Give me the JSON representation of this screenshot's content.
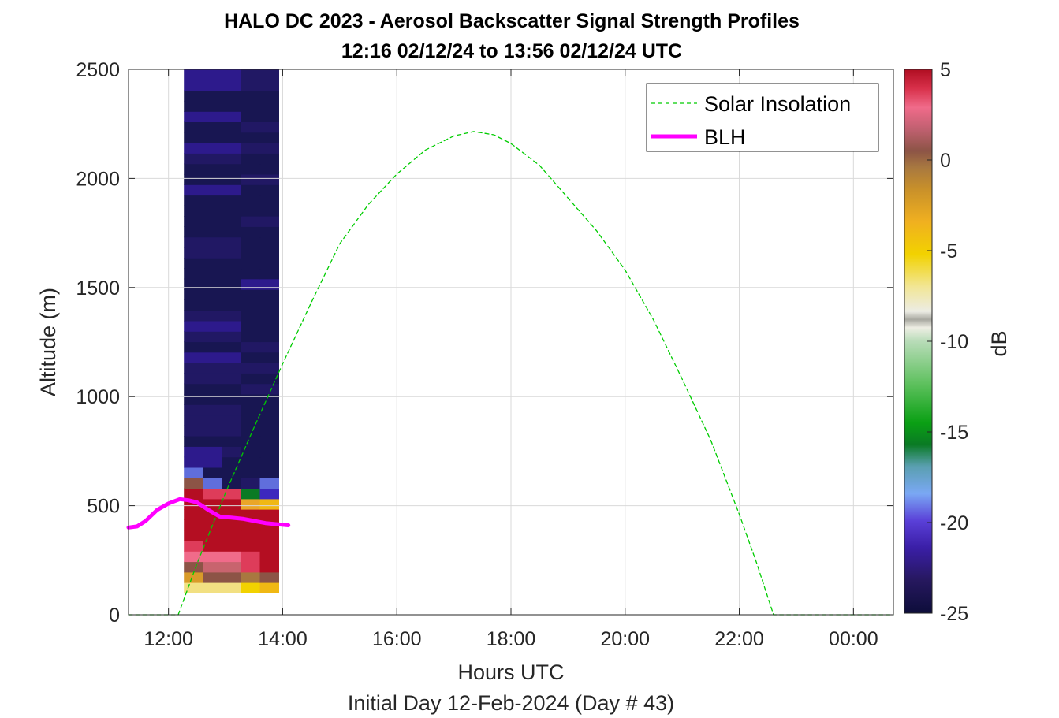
{
  "chart_data": {
    "type": "heatmap",
    "title": "HALO DC 2023 - Aerosol Backscatter Signal Strength Profiles",
    "subtitle": "12:16 02/12/24 to 13:56 02/12/24  UTC",
    "xlabel": "Hours UTC",
    "xlabel2": "Initial Day 12-Feb-2024 (Day # 43)",
    "ylabel": "Altitude (m)",
    "xlim": [
      11.3,
      24.7
    ],
    "ylim": [
      0,
      2500
    ],
    "x_ticks": [
      12,
      14,
      16,
      18,
      20,
      22,
      24
    ],
    "x_tick_labels": [
      "12:00",
      "14:00",
      "16:00",
      "18:00",
      "20:00",
      "22:00",
      "00:00"
    ],
    "y_ticks": [
      0,
      500,
      1000,
      1500,
      2000,
      2500
    ],
    "y_tick_labels": [
      "0",
      "500",
      "1000",
      "1500",
      "2000",
      "2500"
    ],
    "grid": true,
    "colorbar": {
      "label": "dB",
      "limits": [
        -25,
        5
      ],
      "ticks": [
        5,
        0,
        -5,
        -10,
        -15,
        -20,
        -25
      ],
      "tick_labels": [
        "5",
        "0",
        "-5",
        "-10",
        "-15",
        "-20",
        "-25"
      ]
    },
    "heatmap": {
      "x_edges": [
        12.27,
        12.6,
        12.93,
        13.27,
        13.6,
        13.93
      ],
      "y_bottom": 100,
      "y_step": 48,
      "rows_db": [
        [
          -8,
          -8,
          -8,
          -7,
          -6
        ],
        [
          -4,
          0,
          0,
          -1,
          0
        ],
        [
          0,
          1,
          1,
          3,
          4
        ],
        [
          2,
          2,
          2,
          3,
          4
        ],
        [
          3,
          4,
          4,
          4,
          4
        ],
        [
          4,
          4,
          4,
          4,
          4
        ],
        [
          4,
          4,
          4,
          4,
          4
        ],
        [
          4,
          4,
          4,
          4,
          4
        ],
        [
          4,
          4,
          4,
          -5,
          -6
        ],
        [
          4,
          3,
          3,
          -16,
          -21
        ],
        [
          0,
          -20,
          -24,
          -23,
          -20
        ],
        [
          -20,
          -24,
          -24,
          -24,
          -24
        ],
        [
          -22,
          -22,
          -24,
          -24,
          -24
        ],
        [
          -22,
          -22,
          -23,
          -24,
          -24
        ],
        [
          -24,
          -24,
          -24,
          -24,
          -24
        ],
        [
          -23,
          -23,
          -23,
          -24,
          -24
        ],
        [
          -23,
          -23,
          -23,
          -24,
          -24
        ],
        [
          -23,
          -23,
          -23,
          -24,
          -24
        ],
        [
          -24,
          -24,
          -24,
          -24,
          -24
        ],
        [
          -24,
          -24,
          -24,
          -23,
          -23
        ],
        [
          -23,
          -23,
          -23,
          -24,
          -24
        ],
        [
          -23,
          -23,
          -23,
          -23,
          -23
        ],
        [
          -22,
          -22,
          -22,
          -24,
          -24
        ],
        [
          -24,
          -24,
          -24,
          -23,
          -23
        ],
        [
          -23,
          -23,
          -23,
          -24,
          -24
        ],
        [
          -22,
          -22,
          -22,
          -24,
          -24
        ],
        [
          -23,
          -23,
          -23,
          -24,
          -24
        ],
        [
          -24,
          -24,
          -24,
          -24,
          -24
        ],
        [
          -24,
          -24,
          -24,
          -24,
          -24
        ],
        [
          -24,
          -24,
          -24,
          -22,
          -22
        ],
        [
          -24,
          -24,
          -24,
          -24,
          -24
        ],
        [
          -24,
          -24,
          -24,
          -24,
          -24
        ],
        [
          -23,
          -23,
          -23,
          -24,
          -24
        ],
        [
          -23,
          -23,
          -23,
          -24,
          -24
        ],
        [
          -24,
          -24,
          -24,
          -24,
          -24
        ],
        [
          -24,
          -24,
          -24,
          -23,
          -23
        ],
        [
          -24,
          -24,
          -24,
          -24,
          -24
        ],
        [
          -24,
          -24,
          -24,
          -24,
          -24
        ],
        [
          -22,
          -22,
          -22,
          -24,
          -24
        ],
        [
          -24,
          -24,
          -24,
          -23,
          -23
        ],
        [
          -24,
          -24,
          -24,
          -24,
          -24
        ],
        [
          -23,
          -23,
          -23,
          -24,
          -24
        ],
        [
          -22,
          -22,
          -22,
          -23,
          -23
        ],
        [
          -24,
          -24,
          -24,
          -24,
          -24
        ],
        [
          -24,
          -24,
          -24,
          -23,
          -23
        ],
        [
          -22,
          -22,
          -22,
          -24,
          -24
        ],
        [
          -24,
          -24,
          -24,
          -24,
          -24
        ],
        [
          -24,
          -24,
          -24,
          -24,
          -24
        ],
        [
          -22,
          -22,
          -22,
          -23,
          -23
        ],
        [
          -22,
          -22,
          -22,
          -23,
          -23
        ]
      ]
    },
    "series": [
      {
        "name": "Solar Insolation",
        "color": "#00cc00",
        "style": "dashed",
        "x": [
          11.3,
          12.17,
          12.5,
          13.0,
          13.5,
          14.0,
          14.5,
          15.0,
          15.5,
          16.0,
          16.5,
          17.0,
          17.35,
          17.7,
          18.0,
          18.5,
          19.0,
          19.5,
          20.0,
          20.5,
          21.0,
          21.5,
          22.0,
          22.3,
          22.6,
          23.5,
          24.7
        ],
        "y": [
          0,
          0,
          235,
          560,
          860,
          1150,
          1430,
          1700,
          1880,
          2020,
          2130,
          2195,
          2215,
          2200,
          2160,
          2060,
          1910,
          1760,
          1580,
          1350,
          1080,
          800,
          460,
          240,
          0,
          0,
          0
        ]
      },
      {
        "name": "BLH",
        "color": "#ff00ff",
        "style": "solid",
        "x": [
          11.3,
          11.45,
          11.6,
          11.8,
          12.0,
          12.2,
          12.35,
          12.5,
          12.7,
          12.9,
          13.1,
          13.3,
          13.5,
          13.7,
          13.9,
          14.1
        ],
        "y": [
          400,
          405,
          430,
          480,
          510,
          530,
          525,
          515,
          480,
          450,
          445,
          440,
          430,
          420,
          415,
          410
        ]
      }
    ],
    "legend": {
      "placement": "top-right",
      "entries": [
        "Solar Insolation",
        "BLH"
      ]
    }
  }
}
